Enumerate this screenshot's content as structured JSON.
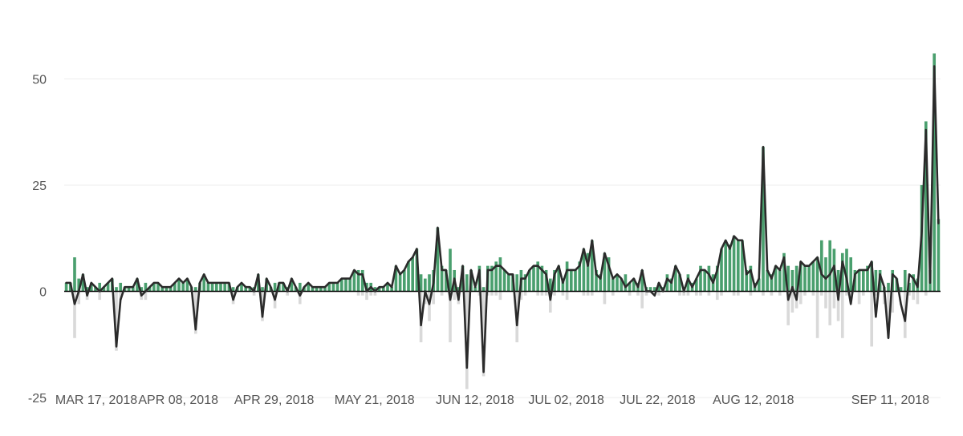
{
  "chart_data": {
    "type": "bar",
    "title": "",
    "xlabel": "",
    "ylabel": "",
    "ylim": [
      -25,
      58
    ],
    "yticks": [
      -25,
      0,
      25,
      50
    ],
    "grid": true,
    "x_start": "2018-03-14",
    "x_end": "2018-09-22",
    "xticks": [
      {
        "date": "2018-03-17",
        "label": "MAR 17, 2018"
      },
      {
        "date": "2018-04-08",
        "label": "APR 08, 2018"
      },
      {
        "date": "2018-04-29",
        "label": "APR 29, 2018"
      },
      {
        "date": "2018-05-21",
        "label": "MAY 21, 2018"
      },
      {
        "date": "2018-06-12",
        "label": "JUN 12, 2018"
      },
      {
        "date": "2018-07-02",
        "label": "JUL 02, 2018"
      },
      {
        "date": "2018-07-22",
        "label": "JUL 22, 2018"
      },
      {
        "date": "2018-08-12",
        "label": "AUG 12, 2018"
      },
      {
        "date": "2018-09-11",
        "label": "SEP 11, 2018"
      }
    ],
    "colors": {
      "positive": "#4a9f6e",
      "negative": "#d9d9d9",
      "net_line": "#2b2b2b",
      "grid": "#eeeeee",
      "zero_line": "#000000"
    },
    "series": [
      {
        "type": "bar",
        "values": [
          2,
          2,
          8,
          3,
          4,
          1,
          2,
          1,
          2,
          1,
          2,
          3,
          1,
          2,
          1,
          1,
          1,
          3,
          1,
          2,
          1,
          2,
          2,
          1,
          1,
          1,
          2,
          3,
          2,
          3,
          1,
          1,
          2,
          4,
          2,
          2,
          2,
          2,
          2,
          2,
          1,
          1,
          2,
          1,
          1,
          1,
          4,
          1,
          3,
          1,
          2,
          2,
          2,
          1,
          3,
          1,
          2,
          1,
          2,
          1,
          1,
          1,
          1,
          2,
          2,
          2,
          3,
          3,
          3,
          5,
          5,
          5,
          2,
          2,
          1,
          1,
          1,
          2,
          1,
          6,
          4,
          5,
          7,
          8,
          10,
          4,
          3,
          4,
          5,
          15,
          6,
          5,
          10,
          5,
          1,
          6,
          4,
          5,
          1,
          6,
          1,
          6,
          6,
          7,
          8,
          5,
          4,
          4,
          4,
          5,
          4,
          5,
          6,
          7,
          6,
          5,
          3,
          5,
          6,
          3,
          7,
          5,
          5,
          7,
          10,
          9,
          12,
          5,
          4,
          9,
          8,
          3,
          4,
          3,
          4,
          2,
          3,
          2,
          5,
          1,
          1,
          1,
          2,
          1,
          4,
          3,
          6,
          4,
          1,
          4,
          2,
          3,
          6,
          5,
          6,
          4,
          6,
          10,
          12,
          11,
          13,
          12,
          12,
          5,
          6,
          2,
          3,
          34,
          5,
          4,
          6,
          5,
          9,
          6,
          5,
          6,
          7,
          6,
          6,
          7,
          8,
          12,
          8,
          12,
          10,
          5,
          9,
          10,
          8,
          5,
          5,
          5,
          6,
          7,
          5,
          5,
          1,
          2,
          5,
          3,
          1,
          5,
          2,
          4,
          3,
          25,
          40,
          5,
          56,
          17
        ]
      },
      {
        "type": "bar",
        "values": [
          0,
          0,
          -11,
          -3,
          0,
          -2,
          0,
          0,
          -2,
          0,
          0,
          0,
          -14,
          -2,
          0,
          0,
          0,
          0,
          -2,
          -2,
          0,
          0,
          0,
          0,
          0,
          0,
          0,
          0,
          0,
          0,
          0,
          -10,
          0,
          0,
          0,
          0,
          0,
          0,
          0,
          0,
          -3,
          0,
          0,
          0,
          0,
          -1,
          0,
          -7,
          0,
          0,
          -4,
          0,
          0,
          -1,
          0,
          0,
          -3,
          0,
          0,
          0,
          0,
          0,
          0,
          0,
          0,
          0,
          0,
          0,
          0,
          0,
          -1,
          -1,
          -2,
          -1,
          -1,
          0,
          0,
          0,
          0,
          0,
          0,
          0,
          0,
          0,
          0,
          -12,
          -3,
          -7,
          -3,
          0,
          -1,
          0,
          -12,
          -2,
          -3,
          0,
          -23,
          0,
          0,
          -1,
          -20,
          -1,
          -1,
          -1,
          -2,
          0,
          0,
          0,
          -12,
          -2,
          -1,
          0,
          0,
          -1,
          -1,
          -1,
          -5,
          -1,
          0,
          -1,
          -2,
          0,
          0,
          0,
          -1,
          -1,
          -1,
          0,
          0,
          -3,
          0,
          -1,
          0,
          0,
          0,
          -1,
          0,
          -1,
          -4,
          -1,
          0,
          0,
          -1,
          0,
          0,
          0,
          0,
          -1,
          -1,
          -1,
          0,
          -1,
          -1,
          0,
          -1,
          0,
          -2,
          -1,
          0,
          0,
          -1,
          -1,
          0,
          0,
          -1,
          0,
          0,
          -1,
          0,
          -1,
          0,
          -1,
          0,
          -8,
          -5,
          -4,
          -3,
          -1,
          0,
          -1,
          -11,
          -1,
          -4,
          -8,
          -4,
          -7,
          -11,
          -1,
          -2,
          0,
          -3,
          -1,
          0,
          -13,
          -1,
          0,
          -3,
          -11,
          -5,
          0,
          0,
          -11,
          -1,
          -2,
          -3,
          0,
          -1
        ]
      },
      {
        "type": "line",
        "values": [
          2,
          2,
          -3,
          0,
          4,
          -1,
          2,
          1,
          0,
          1,
          2,
          3,
          -13,
          -2,
          1,
          1,
          1,
          3,
          -1,
          0,
          1,
          2,
          2,
          1,
          1,
          1,
          2,
          3,
          2,
          3,
          1,
          -9,
          2,
          4,
          2,
          2,
          2,
          2,
          2,
          2,
          -2,
          1,
          2,
          1,
          1,
          0,
          4,
          -6,
          3,
          1,
          -2,
          2,
          2,
          0,
          3,
          1,
          -1,
          1,
          2,
          1,
          1,
          1,
          1,
          2,
          2,
          2,
          3,
          3,
          3,
          5,
          4,
          4,
          0,
          1,
          0,
          1,
          1,
          2,
          1,
          6,
          4,
          5,
          7,
          8,
          10,
          -8,
          0,
          -3,
          2,
          15,
          5,
          5,
          -2,
          3,
          -2,
          6,
          -18,
          5,
          1,
          5,
          -19,
          5,
          5,
          6,
          6,
          5,
          4,
          4,
          -8,
          3,
          3,
          5,
          6,
          6,
          5,
          4,
          -2,
          4,
          6,
          2,
          5,
          5,
          5,
          6,
          10,
          6,
          12,
          4,
          3,
          9,
          6,
          3,
          4,
          3,
          1,
          2,
          3,
          1,
          5,
          0,
          0,
          -1,
          2,
          0,
          3,
          2,
          6,
          4,
          0,
          3,
          1,
          3,
          5,
          5,
          4,
          2,
          5,
          10,
          12,
          10,
          13,
          12,
          12,
          4,
          5,
          1,
          3,
          34,
          5,
          3,
          6,
          5,
          8,
          -2,
          1,
          -2,
          7,
          6,
          6,
          7,
          8,
          4,
          3,
          4,
          6,
          -2,
          7,
          3,
          -3,
          4,
          5,
          5,
          5,
          7,
          -6,
          4,
          1,
          -11,
          4,
          3,
          -3,
          -7,
          4,
          3,
          1,
          14,
          38,
          2,
          53,
          16
        ]
      }
    ]
  }
}
